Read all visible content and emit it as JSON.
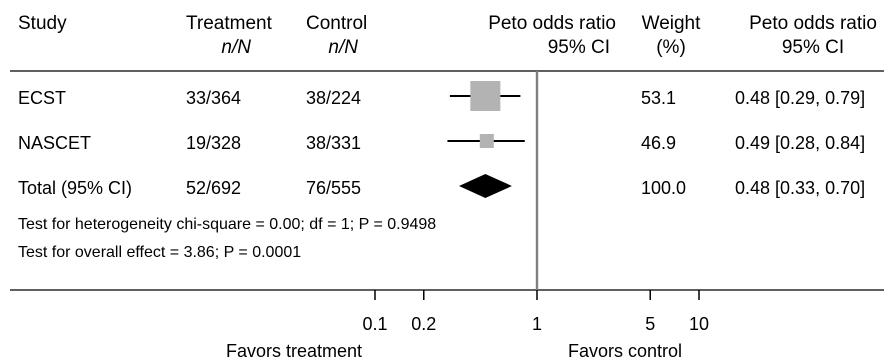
{
  "header": {
    "study": "Study",
    "treatment": "Treatment",
    "treatment_sub": "n/N",
    "control": "Control",
    "control_sub": "n/N",
    "plot_title": "Peto odds ratio",
    "plot_sub": "95% CI",
    "weight": "Weight",
    "weight_sub": "(%)",
    "ci_title": "Peto odds ratio",
    "ci_sub": "95% CI"
  },
  "rows": [
    {
      "study": "ECST",
      "treatment": "33/364",
      "control": "38/224",
      "weight": "53.1",
      "ci": "0.48 [0.29, 0.79]"
    },
    {
      "study": "NASCET",
      "treatment": "19/328",
      "control": "38/331",
      "weight": "46.9",
      "ci": "0.49 [0.28, 0.84]"
    },
    {
      "study": "Total (95% CI)",
      "treatment": "52/692",
      "control": "76/555",
      "weight": "100.0",
      "ci": "0.48 [0.33, 0.70]"
    }
  ],
  "footnotes": {
    "heterogeneity": "Test for heterogeneity chi-square = 0.00; df = 1; P = 0.9498",
    "overall": "Test for overall effect = 3.86; P = 0.0001"
  },
  "axis": {
    "favors_left": "Favors treatment",
    "favors_right": "Favors control"
  },
  "colors": {
    "square": "#b3b3b3",
    "diamond": "#000000",
    "null_line": "#808080",
    "lines": "#000000"
  },
  "chart_data": {
    "type": "forest",
    "scale": "log",
    "xlim": [
      0.05,
      20
    ],
    "xticks": [
      0.1,
      0.2,
      1,
      5,
      10
    ],
    "xtick_labels": [
      "0.1",
      "0.2",
      "1",
      "5",
      "10"
    ],
    "null_value": 1,
    "studies": [
      {
        "name": "ECST",
        "or": 0.48,
        "lower": 0.29,
        "upper": 0.79,
        "weight": 53.1
      },
      {
        "name": "NASCET",
        "or": 0.49,
        "lower": 0.28,
        "upper": 0.84,
        "weight": 46.9
      }
    ],
    "pooled": {
      "name": "Total (95% CI)",
      "or": 0.48,
      "lower": 0.33,
      "upper": 0.7
    }
  }
}
